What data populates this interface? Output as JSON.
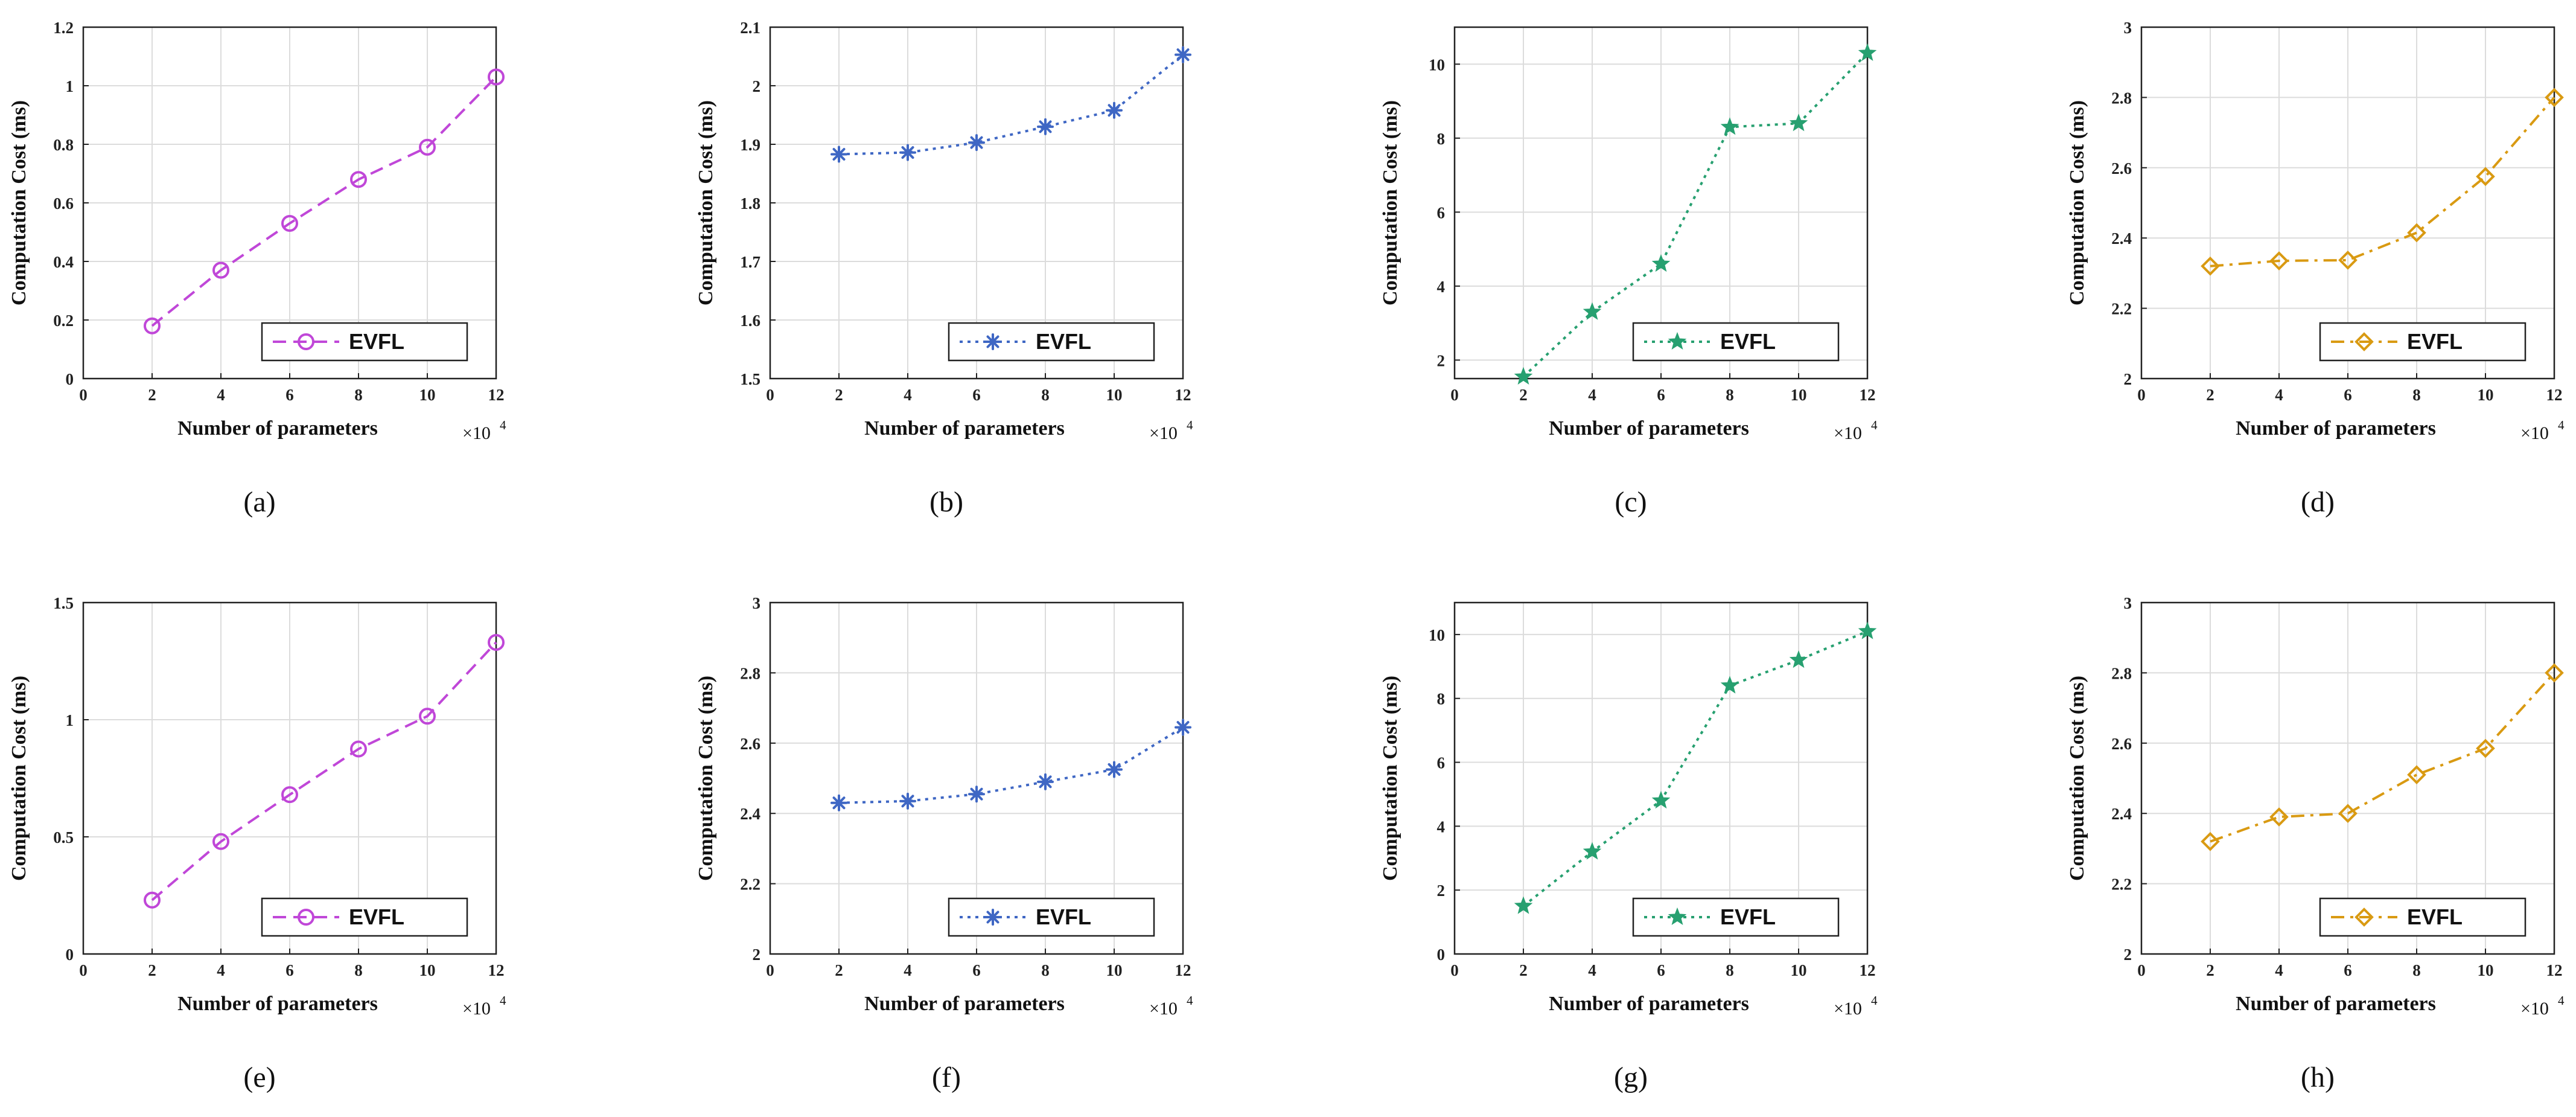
{
  "figure": {
    "charts": [
      {
        "label": "(a)",
        "color": "#c047d8",
        "marker": "circle",
        "line_style": "dashed",
        "ylim": [
          0,
          1.2
        ],
        "yticks": [
          "0",
          "0.2",
          "0.4",
          "0.6",
          "0.8",
          "1",
          "1.2"
        ]
      },
      {
        "label": "(b)",
        "color": "#3f67c4",
        "marker": "asterisk",
        "line_style": "dotted",
        "ylim": [
          1.5,
          2.1
        ],
        "yticks": [
          "1.5",
          "1.6",
          "1.7",
          "1.8",
          "1.9",
          "2",
          "2.1"
        ]
      },
      {
        "label": "(c)",
        "color": "#27a070",
        "marker": "star",
        "line_style": "dotted",
        "ylim": [
          1.5,
          11
        ],
        "yticks": [
          "2",
          "4",
          "6",
          "8",
          "10"
        ]
      },
      {
        "label": "(d)",
        "color": "#d99a12",
        "marker": "diamond",
        "line_style": "dashdot",
        "ylim": [
          2,
          3
        ],
        "yticks": [
          "2",
          "2.2",
          "2.4",
          "2.6",
          "2.8",
          "3"
        ]
      },
      {
        "label": "(e)",
        "color": "#c047d8",
        "marker": "circle",
        "line_style": "dashed",
        "ylim": [
          0,
          1.5
        ],
        "yticks": [
          "0",
          "0.5",
          "1",
          "1.5"
        ]
      },
      {
        "label": "(f)",
        "color": "#3f67c4",
        "marker": "asterisk",
        "line_style": "dotted",
        "ylim": [
          2,
          3
        ],
        "yticks": [
          "2",
          "2.2",
          "2.4",
          "2.6",
          "2.8",
          "3"
        ]
      },
      {
        "label": "(g)",
        "color": "#27a070",
        "marker": "star",
        "line_style": "dotted",
        "ylim": [
          0,
          11
        ],
        "yticks": [
          "0",
          "2",
          "4",
          "6",
          "8",
          "10"
        ]
      },
      {
        "label": "(h)",
        "color": "#d99a12",
        "marker": "diamond",
        "line_style": "dashdot",
        "ylim": [
          2,
          3
        ],
        "yticks": [
          "2",
          "2.2",
          "2.4",
          "2.6",
          "2.8",
          "3"
        ]
      }
    ]
  },
  "chart_data": [
    {
      "type": "line",
      "panel": "(a)",
      "title": "",
      "xlabel": "Number of parameters",
      "ylabel": "Computation Cost (ms)",
      "x_multiplier": "×10",
      "x_exponent": "4",
      "xlim": [
        0,
        12
      ],
      "ylim": [
        0,
        1.2
      ],
      "xticks": [
        "0",
        "2",
        "4",
        "6",
        "8",
        "10",
        "12"
      ],
      "legend_position": "bottom-right",
      "grid": true,
      "series": [
        {
          "name": "EVFL",
          "x": [
            2,
            4,
            6,
            8,
            10,
            12
          ],
          "values": [
            0.18,
            0.37,
            0.53,
            0.68,
            0.79,
            1.03
          ]
        }
      ]
    },
    {
      "type": "line",
      "panel": "(b)",
      "title": "",
      "xlabel": "Number of parameters",
      "ylabel": "Computation Cost (ms)",
      "x_multiplier": "×10",
      "x_exponent": "4",
      "xlim": [
        0,
        12
      ],
      "ylim": [
        1.5,
        2.1
      ],
      "xticks": [
        "0",
        "2",
        "4",
        "6",
        "8",
        "10",
        "12"
      ],
      "legend_position": "bottom-right",
      "grid": true,
      "series": [
        {
          "name": "EVFL",
          "x": [
            2,
            4,
            6,
            8,
            10,
            12
          ],
          "values": [
            1.883,
            1.886,
            1.903,
            1.93,
            1.958,
            2.053
          ]
        }
      ]
    },
    {
      "type": "line",
      "panel": "(c)",
      "title": "",
      "xlabel": "Number of parameters",
      "ylabel": "Computation Cost (ms)",
      "x_multiplier": "×10",
      "x_exponent": "4",
      "xlim": [
        0,
        12
      ],
      "ylim": [
        1.5,
        11
      ],
      "xticks": [
        "0",
        "2",
        "4",
        "6",
        "8",
        "10",
        "12"
      ],
      "legend_position": "bottom-right",
      "grid": true,
      "series": [
        {
          "name": "EVFL",
          "x": [
            2,
            4,
            6,
            8,
            10,
            12
          ],
          "values": [
            1.55,
            3.3,
            4.6,
            8.3,
            8.4,
            10.3
          ]
        }
      ]
    },
    {
      "type": "line",
      "panel": "(d)",
      "title": "",
      "xlabel": "Number of parameters",
      "ylabel": "Computation Cost (ms)",
      "x_multiplier": "×10",
      "x_exponent": "4",
      "xlim": [
        0,
        12
      ],
      "ylim": [
        2,
        3
      ],
      "xticks": [
        "0",
        "2",
        "4",
        "6",
        "8",
        "10",
        "12"
      ],
      "legend_position": "bottom-right",
      "grid": true,
      "series": [
        {
          "name": "EVFL",
          "x": [
            2,
            4,
            6,
            8,
            10,
            12
          ],
          "values": [
            2.32,
            2.335,
            2.337,
            2.415,
            2.575,
            2.8
          ]
        }
      ]
    },
    {
      "type": "line",
      "panel": "(e)",
      "title": "",
      "xlabel": "Number of parameters",
      "ylabel": "Computation Cost (ms)",
      "x_multiplier": "×10",
      "x_exponent": "4",
      "xlim": [
        0,
        12
      ],
      "ylim": [
        0,
        1.5
      ],
      "xticks": [
        "0",
        "2",
        "4",
        "6",
        "8",
        "10",
        "12"
      ],
      "legend_position": "bottom-right",
      "grid": true,
      "series": [
        {
          "name": "EVFL",
          "x": [
            2,
            4,
            6,
            8,
            10,
            12
          ],
          "values": [
            0.23,
            0.48,
            0.68,
            0.875,
            1.015,
            1.33
          ]
        }
      ]
    },
    {
      "type": "line",
      "panel": "(f)",
      "title": "",
      "xlabel": "Number of parameters",
      "ylabel": "Computation Cost (ms)",
      "x_multiplier": "×10",
      "x_exponent": "4",
      "xlim": [
        0,
        12
      ],
      "ylim": [
        2,
        3
      ],
      "xticks": [
        "0",
        "2",
        "4",
        "6",
        "8",
        "10",
        "12"
      ],
      "legend_position": "bottom-right",
      "grid": true,
      "series": [
        {
          "name": "EVFL",
          "x": [
            2,
            4,
            6,
            8,
            10,
            12
          ],
          "values": [
            2.43,
            2.435,
            2.455,
            2.49,
            2.525,
            2.645
          ]
        }
      ]
    },
    {
      "type": "line",
      "panel": "(g)",
      "title": "",
      "xlabel": "Number of parameters",
      "ylabel": "Computation Cost (ms)",
      "x_multiplier": "×10",
      "x_exponent": "4",
      "xlim": [
        0,
        12
      ],
      "ylim": [
        0,
        11
      ],
      "xticks": [
        "0",
        "2",
        "4",
        "6",
        "8",
        "10",
        "12"
      ],
      "legend_position": "bottom-right",
      "grid": true,
      "series": [
        {
          "name": "EVFL",
          "x": [
            2,
            4,
            6,
            8,
            10,
            12
          ],
          "values": [
            1.5,
            3.2,
            4.8,
            8.4,
            9.2,
            10.1
          ]
        }
      ]
    },
    {
      "type": "line",
      "panel": "(h)",
      "title": "",
      "xlabel": "Number of parameters",
      "ylabel": "Computation Cost (ms)",
      "x_multiplier": "×10",
      "x_exponent": "4",
      "xlim": [
        0,
        12
      ],
      "ylim": [
        2,
        3
      ],
      "xticks": [
        "0",
        "2",
        "4",
        "6",
        "8",
        "10",
        "12"
      ],
      "legend_position": "bottom-right",
      "grid": true,
      "series": [
        {
          "name": "EVFL",
          "x": [
            2,
            4,
            6,
            8,
            10,
            12
          ],
          "values": [
            2.32,
            2.39,
            2.4,
            2.51,
            2.585,
            2.8
          ]
        }
      ]
    }
  ]
}
